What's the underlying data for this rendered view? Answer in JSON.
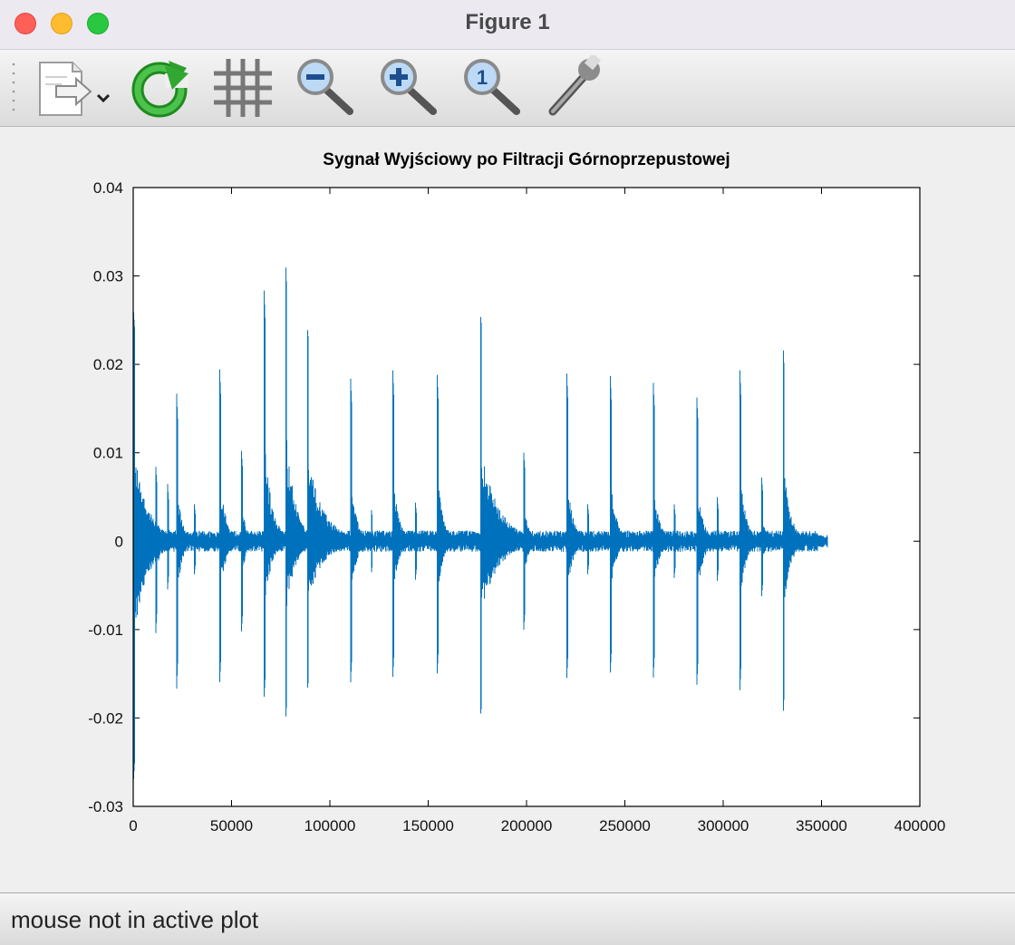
{
  "window": {
    "title": "Figure 1",
    "controls": [
      "close",
      "minimize",
      "maximize"
    ]
  },
  "toolbar": {
    "items": [
      {
        "icon": "export-document-icon",
        "has_dropdown": true
      },
      {
        "icon": "refresh-icon"
      },
      {
        "icon": "grid-icon"
      },
      {
        "icon": "zoom-out-icon"
      },
      {
        "icon": "zoom-in-icon"
      },
      {
        "icon": "zoom-reset-icon",
        "glyph": "1"
      },
      {
        "icon": "wrench-icon"
      }
    ]
  },
  "status": {
    "text": "mouse not in active plot"
  },
  "chart_data": {
    "type": "line",
    "title": "Sygnał Wyjściowy po Filtracji Górnoprzepustowej",
    "xlabel": "",
    "ylabel": "",
    "xlim": [
      0,
      400000
    ],
    "ylim": [
      -0.03,
      0.04
    ],
    "xticks": [
      "0",
      "50000",
      "100000",
      "150000",
      "200000",
      "250000",
      "300000",
      "350000",
      "400000"
    ],
    "yticks": [
      "-0.03",
      "-0.02",
      "-0.01",
      "0",
      "0.01",
      "0.02",
      "0.03",
      "0.04"
    ],
    "grid": false,
    "line_color": "#0072bd",
    "series": [
      {
        "x_end": 353000,
        "baseline_noise": 0.0012,
        "events": [
          {
            "x": 200,
            "y_max": 0.026,
            "y_min": -0.027,
            "decay": 7000
          },
          {
            "x": 11500,
            "y_max": 0.0085,
            "y_min": -0.0105,
            "decay": 2000
          },
          {
            "x": 17500,
            "y_max": 0.0065,
            "y_min": -0.0055,
            "decay": 1500
          },
          {
            "x": 22000,
            "y_max": 0.0175,
            "y_min": -0.0175,
            "decay": 2500
          },
          {
            "x": 31000,
            "y_max": 0.0045,
            "y_min": -0.004,
            "decay": 1500
          },
          {
            "x": 44000,
            "y_max": 0.0195,
            "y_min": -0.016,
            "decay": 3000
          },
          {
            "x": 55000,
            "y_max": 0.0105,
            "y_min": -0.0105,
            "decay": 2500
          },
          {
            "x": 66500,
            "y_max": 0.029,
            "y_min": -0.018,
            "decay": 4000
          },
          {
            "x": 77500,
            "y_max": 0.032,
            "y_min": -0.0205,
            "decay": 4500
          },
          {
            "x": 88500,
            "y_max": 0.0245,
            "y_min": -0.017,
            "decay": 8000
          },
          {
            "x": 110500,
            "y_max": 0.019,
            "y_min": -0.0165,
            "decay": 3000
          },
          {
            "x": 121000,
            "y_max": 0.004,
            "y_min": -0.004,
            "decay": 1500
          },
          {
            "x": 132000,
            "y_max": 0.0195,
            "y_min": -0.0155,
            "decay": 3000
          },
          {
            "x": 143500,
            "y_max": 0.0045,
            "y_min": -0.0045,
            "decay": 1500
          },
          {
            "x": 154500,
            "y_max": 0.0195,
            "y_min": -0.0155,
            "decay": 3000
          },
          {
            "x": 176500,
            "y_max": 0.026,
            "y_min": -0.02,
            "decay": 9000
          },
          {
            "x": 198500,
            "y_max": 0.0105,
            "y_min": -0.0105,
            "decay": 2500
          },
          {
            "x": 220500,
            "y_max": 0.019,
            "y_min": -0.0155,
            "decay": 3000
          },
          {
            "x": 231000,
            "y_max": 0.0045,
            "y_min": -0.004,
            "decay": 1500
          },
          {
            "x": 242500,
            "y_max": 0.0195,
            "y_min": -0.0155,
            "decay": 3000
          },
          {
            "x": 264500,
            "y_max": 0.018,
            "y_min": -0.0155,
            "decay": 3000
          },
          {
            "x": 275000,
            "y_max": 0.0045,
            "y_min": -0.0045,
            "decay": 1500
          },
          {
            "x": 286500,
            "y_max": 0.017,
            "y_min": -0.017,
            "decay": 3000
          },
          {
            "x": 297000,
            "y_max": 0.005,
            "y_min": -0.0045,
            "decay": 1500
          },
          {
            "x": 308500,
            "y_max": 0.0195,
            "y_min": -0.017,
            "decay": 3000
          },
          {
            "x": 319500,
            "y_max": 0.0075,
            "y_min": -0.0065,
            "decay": 2000
          },
          {
            "x": 330500,
            "y_max": 0.0225,
            "y_min": -0.02,
            "decay": 3500
          }
        ]
      }
    ]
  }
}
